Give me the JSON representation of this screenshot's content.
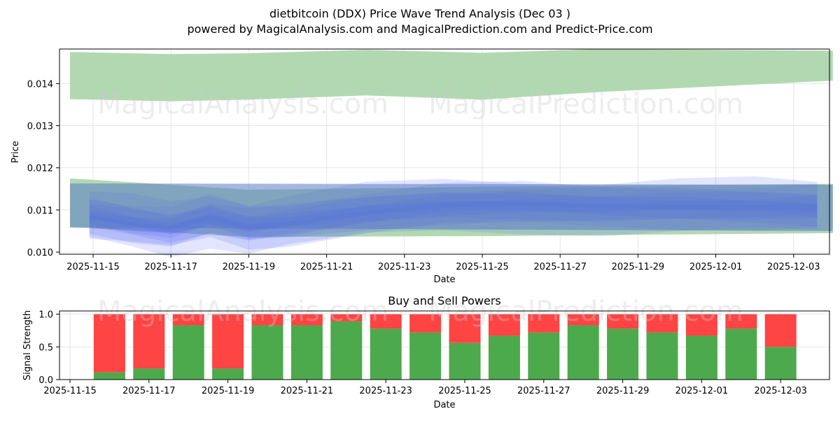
{
  "title_line1": "dietbitcoin (DDX) Price Wave Trend Analysis (Dec 03 )",
  "title_line2": "powered by MagicalAnalysis.com and MagicalPrediction.com and Predict-Price.com",
  "watermark_left": "MagicalAnalysis.com",
  "watermark_right": "MagicalPrediction.com",
  "colors": {
    "green_band": "#b2d8b2",
    "blue_band": "#4a5ff0",
    "buy": "#4caa4c",
    "sell": "#ff4444",
    "grid": "#e5e5e5"
  },
  "chart_data": [
    {
      "type": "area",
      "title": "",
      "xlabel": "Date",
      "ylabel": "Price",
      "ylim": [
        0.00995,
        0.01482
      ],
      "xlim": [
        "2025-11-14.3",
        "2025-12-04.5"
      ],
      "x_ticks": [
        "2025-11-15",
        "2025-11-17",
        "2025-11-19",
        "2025-11-21",
        "2025-11-23",
        "2025-11-25",
        "2025-11-27",
        "2025-11-29",
        "2025-12-01",
        "2025-12-03"
      ],
      "y_ticks": [
        "0.010",
        "0.011",
        "0.012",
        "0.013",
        "0.014"
      ],
      "upper_band": {
        "x": [
          0,
          2.6,
          4.6,
          7.6,
          10.6,
          13.6,
          19.6
        ],
        "top": [
          0.01475,
          0.0147,
          0.01472,
          0.0148,
          0.01473,
          0.01482,
          0.01478
        ],
        "bottom": [
          0.01363,
          0.01358,
          0.01362,
          0.01372,
          0.01362,
          0.0138,
          0.01407
        ]
      },
      "lower_band": {
        "x": [
          0,
          4.6,
          10.6,
          19.6
        ],
        "top": [
          0.01175,
          0.01148,
          0.01155,
          0.01162
        ],
        "bottom": [
          0.0106,
          0.01036,
          0.01038,
          0.01045
        ]
      },
      "wave_center": {
        "x": [
          0.5,
          1.6,
          2.6,
          3.6,
          4.6,
          5.6,
          7.6,
          9.6,
          11.6,
          13.6,
          15.6,
          17.6,
          19.2
        ],
        "values": [
          0.01085,
          0.01068,
          0.01055,
          0.0108,
          0.0106,
          0.0107,
          0.01095,
          0.0111,
          0.01112,
          0.01108,
          0.0111,
          0.01108,
          0.01105
        ]
      }
    },
    {
      "type": "bar",
      "title": "Buy and Sell Powers",
      "xlabel": "Date",
      "ylabel": "Signal Strength",
      "ylim": [
        0,
        1.05
      ],
      "y_ticks": [
        "0.0",
        "0.5",
        "1.0"
      ],
      "x_ticks": [
        "2025-11-15",
        "2025-11-17",
        "2025-11-19",
        "2025-11-21",
        "2025-11-23",
        "2025-11-25",
        "2025-11-27",
        "2025-11-29",
        "2025-12-01",
        "2025-12-03"
      ],
      "categories": [
        "2025-11-16",
        "2025-11-17",
        "2025-11-18",
        "2025-11-19",
        "2025-11-20",
        "2025-11-21",
        "2025-11-22",
        "2025-11-23",
        "2025-11-24",
        "2025-11-25",
        "2025-11-26",
        "2025-11-27",
        "2025-11-28",
        "2025-11-29",
        "2025-11-30",
        "2025-12-01",
        "2025-12-02",
        "2025-12-03"
      ],
      "series": [
        {
          "name": "Buy",
          "values": [
            0.11,
            0.17,
            0.83,
            0.17,
            0.83,
            0.83,
            0.89,
            0.78,
            0.72,
            0.56,
            0.67,
            0.72,
            0.83,
            0.78,
            0.72,
            0.67,
            0.78,
            0.5
          ]
        },
        {
          "name": "Sell",
          "values": [
            0.89,
            0.83,
            0.17,
            0.83,
            0.17,
            0.17,
            0.11,
            0.22,
            0.28,
            0.44,
            0.33,
            0.28,
            0.17,
            0.22,
            0.28,
            0.33,
            0.22,
            0.5
          ]
        }
      ]
    }
  ]
}
